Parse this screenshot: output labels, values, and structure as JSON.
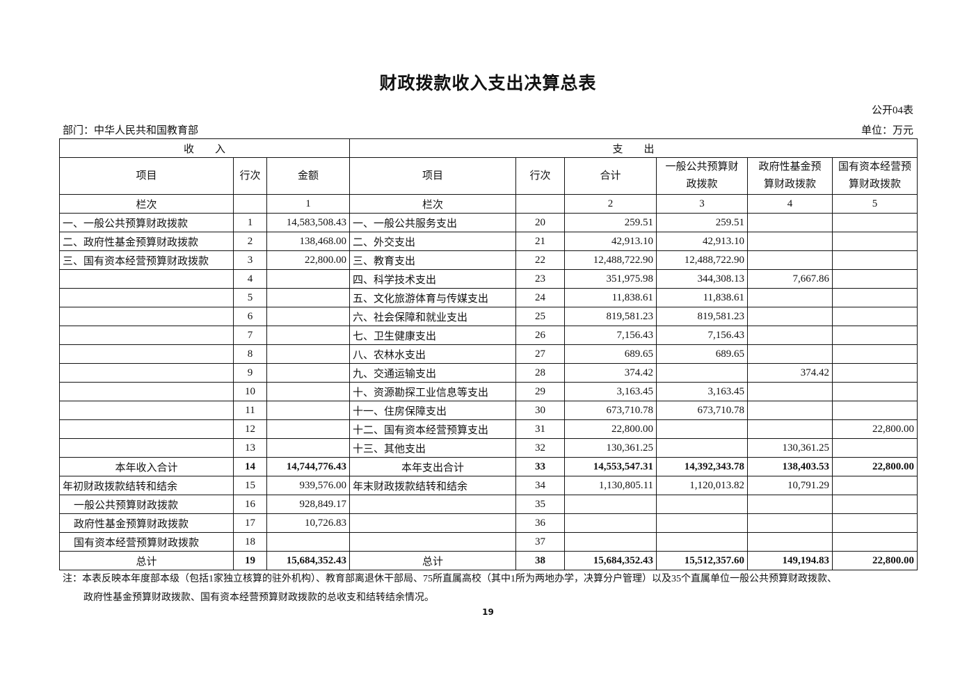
{
  "title": "财政拨款收入支出决算总表",
  "form_no": "公开04表",
  "department": "部门：中华人民共和国教育部",
  "unit": "单位：万元",
  "header": {
    "income": "收　　入",
    "expense": "支　　出",
    "item": "项目",
    "row_no": "行次",
    "amount": "金额",
    "exp_item": "项目",
    "exp_row_no": "行次",
    "total": "合计",
    "general": "一般公共预算财政拨款",
    "fund": "政府性基金预算财政拨款",
    "state_capital": "国有资本经营预算财政拨款",
    "column_label": "栏次",
    "exp_column_label": "栏次",
    "col1": "1",
    "col2": "2",
    "col3": "3",
    "col4": "4",
    "col5": "5"
  },
  "rows": [
    {
      "in_label": "一、一般公共预算财政拨款",
      "in_no": "1",
      "in_amt": "14,583,508.43",
      "out_label": "一、一般公共服务支出",
      "out_no": "20",
      "total": "259.51",
      "c3": "259.51",
      "c4": "",
      "c5": ""
    },
    {
      "in_label": "二、政府性基金预算财政拨款",
      "in_no": "2",
      "in_amt": "138,468.00",
      "out_label": "二、外交支出",
      "out_no": "21",
      "total": "42,913.10",
      "c3": "42,913.10",
      "c4": "",
      "c5": ""
    },
    {
      "in_label": "三、国有资本经营预算财政拨款",
      "in_no": "3",
      "in_amt": "22,800.00",
      "out_label": "三、教育支出",
      "out_no": "22",
      "total": "12,488,722.90",
      "c3": "12,488,722.90",
      "c4": "",
      "c5": ""
    },
    {
      "in_label": "",
      "in_no": "4",
      "in_amt": "",
      "out_label": "四、科学技术支出",
      "out_no": "23",
      "total": "351,975.98",
      "c3": "344,308.13",
      "c4": "7,667.86",
      "c5": ""
    },
    {
      "in_label": "",
      "in_no": "5",
      "in_amt": "",
      "out_label": "五、文化旅游体育与传媒支出",
      "out_no": "24",
      "total": "11,838.61",
      "c3": "11,838.61",
      "c4": "",
      "c5": ""
    },
    {
      "in_label": "",
      "in_no": "6",
      "in_amt": "",
      "out_label": "六、社会保障和就业支出",
      "out_no": "25",
      "total": "819,581.23",
      "c3": "819,581.23",
      "c4": "",
      "c5": ""
    },
    {
      "in_label": "",
      "in_no": "7",
      "in_amt": "",
      "out_label": "七、卫生健康支出",
      "out_no": "26",
      "total": "7,156.43",
      "c3": "7,156.43",
      "c4": "",
      "c5": ""
    },
    {
      "in_label": "",
      "in_no": "8",
      "in_amt": "",
      "out_label": "八、农林水支出",
      "out_no": "27",
      "total": "689.65",
      "c3": "689.65",
      "c4": "",
      "c5": ""
    },
    {
      "in_label": "",
      "in_no": "9",
      "in_amt": "",
      "out_label": "九、交通运输支出",
      "out_no": "28",
      "total": "374.42",
      "c3": "",
      "c4": "374.42",
      "c5": ""
    },
    {
      "in_label": "",
      "in_no": "10",
      "in_amt": "",
      "out_label": "十、资源勘探工业信息等支出",
      "out_no": "29",
      "total": "3,163.45",
      "c3": "3,163.45",
      "c4": "",
      "c5": ""
    },
    {
      "in_label": "",
      "in_no": "11",
      "in_amt": "",
      "out_label": "十一、住房保障支出",
      "out_no": "30",
      "total": "673,710.78",
      "c3": "673,710.78",
      "c4": "",
      "c5": ""
    },
    {
      "in_label": "",
      "in_no": "12",
      "in_amt": "",
      "out_label": "十二、国有资本经营预算支出",
      "out_no": "31",
      "total": "22,800.00",
      "c3": "",
      "c4": "",
      "c5": "22,800.00"
    },
    {
      "in_label": "",
      "in_no": "13",
      "in_amt": "",
      "out_label": "十三、其他支出",
      "out_no": "32",
      "total": "130,361.25",
      "c3": "",
      "c4": "130,361.25",
      "c5": ""
    },
    {
      "in_label": "本年收入合计",
      "in_no": "14",
      "in_amt": "14,744,776.43",
      "out_label": "本年支出合计",
      "out_no": "33",
      "total": "14,553,547.31",
      "c3": "14,392,343.78",
      "c4": "138,403.53",
      "c5": "22,800.00",
      "bold": true,
      "center_labels": true
    },
    {
      "in_label": "年初财政拨款结转和结余",
      "in_no": "15",
      "in_amt": "939,576.00",
      "out_label": "年末财政拨款结转和结余",
      "out_no": "34",
      "total": "1,130,805.11",
      "c3": "1,120,013.82",
      "c4": "10,791.29",
      "c5": ""
    },
    {
      "in_label": "一般公共预算财政拨款",
      "in_no": "16",
      "in_amt": "928,849.17",
      "out_label": "",
      "out_no": "35",
      "total": "",
      "c3": "",
      "c4": "",
      "c5": "",
      "indent": true
    },
    {
      "in_label": "政府性基金预算财政拨款",
      "in_no": "17",
      "in_amt": "10,726.83",
      "out_label": "",
      "out_no": "36",
      "total": "",
      "c3": "",
      "c4": "",
      "c5": "",
      "indent": true
    },
    {
      "in_label": "国有资本经营预算财政拨款",
      "in_no": "18",
      "in_amt": "",
      "out_label": "",
      "out_no": "37",
      "total": "",
      "c3": "",
      "c4": "",
      "c5": "",
      "indent": true
    },
    {
      "in_label": "总计",
      "in_no": "19",
      "in_amt": "15,684,352.43",
      "out_label": "总计",
      "out_no": "38",
      "total": "15,684,352.43",
      "c3": "15,512,357.60",
      "c4": "149,194.83",
      "c5": "22,800.00",
      "bold": true,
      "center_labels": true
    }
  ],
  "note_line1": "注：本表反映本年度部本级（包括1家独立核算的驻外机构）、教育部离退休干部局、75所直属高校（其中1所为两地办学，决算分户管理）以及35个直属单位一般公共预算财政拨款、",
  "note_line2": "政府性基金预算财政拨款、国有资本经营预算财政拨款的总收支和结转结余情况。",
  "page_number": "19"
}
